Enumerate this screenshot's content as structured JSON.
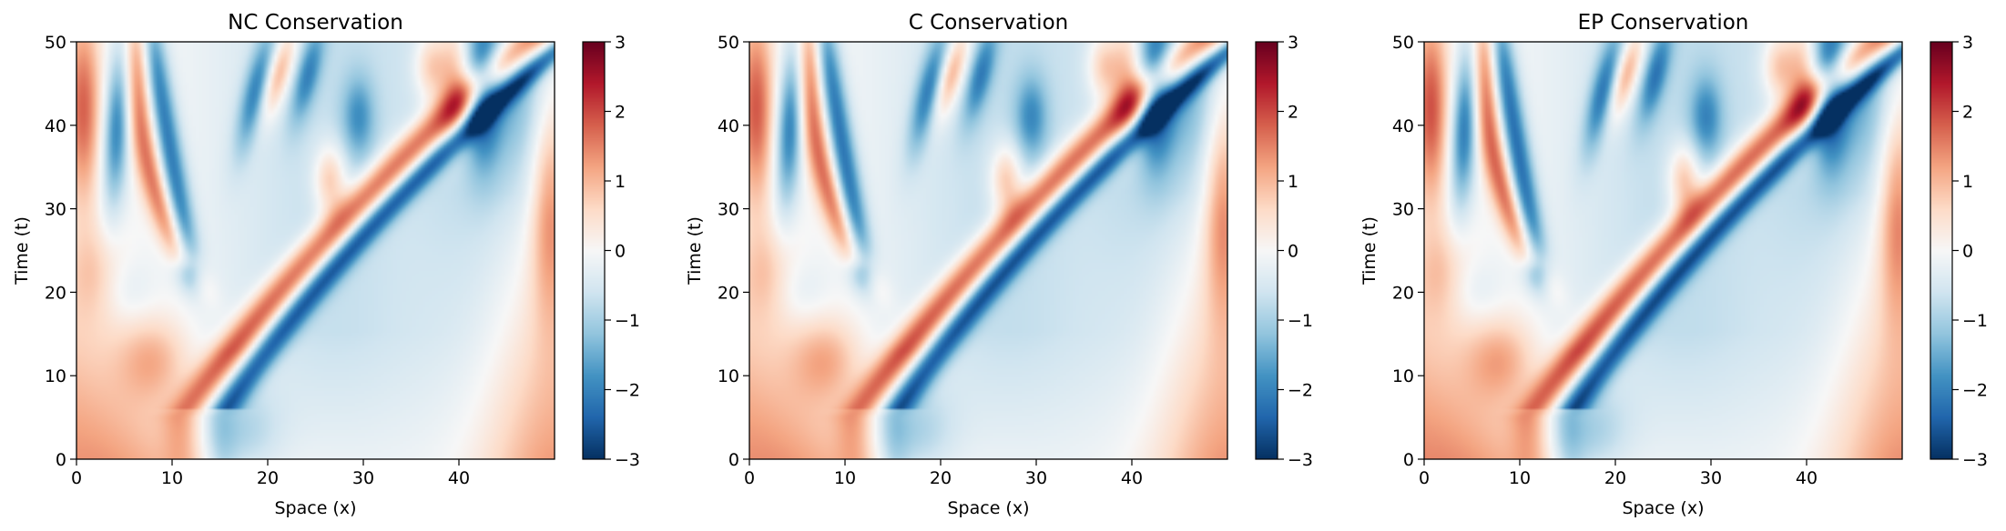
{
  "figure": {
    "colormap": "RdBu_r",
    "colormap_stops": [
      "#053061",
      "#2166ac",
      "#4393c3",
      "#92c5de",
      "#d1e5f0",
      "#f7f7f7",
      "#fddbc7",
      "#f4a582",
      "#d6604d",
      "#b2182b",
      "#67001f"
    ]
  },
  "chart_data": [
    {
      "type": "heatmap",
      "title": "NC Conservation",
      "xlabel": "Space (x)",
      "ylabel": "Time (t)",
      "xlim": [
        0,
        50
      ],
      "ylim": [
        0,
        50
      ],
      "xticks": [
        "0",
        "10",
        "20",
        "30",
        "40"
      ],
      "yticks": [
        "0",
        "10",
        "20",
        "30",
        "40",
        "50"
      ],
      "colorbar": {
        "range": [
          -3,
          3
        ],
        "ticks": [
          "−3",
          "−2",
          "−1",
          "0",
          "1",
          "2",
          "3"
        ]
      },
      "variant": 0
    },
    {
      "type": "heatmap",
      "title": "C Conservation",
      "xlabel": "Space (x)",
      "ylabel": "Time (t)",
      "xlim": [
        0,
        50
      ],
      "ylim": [
        0,
        50
      ],
      "xticks": [
        "0",
        "10",
        "20",
        "30",
        "40"
      ],
      "yticks": [
        "0",
        "10",
        "20",
        "30",
        "40",
        "50"
      ],
      "colorbar": {
        "range": [
          -3,
          3
        ],
        "ticks": [
          "−3",
          "−2",
          "−1",
          "0",
          "1",
          "2",
          "3"
        ]
      },
      "variant": 1
    },
    {
      "type": "heatmap",
      "title": "EP Conservation",
      "xlabel": "Space (x)",
      "ylabel": "Time (t)",
      "xlim": [
        0,
        50
      ],
      "ylim": [
        0,
        50
      ],
      "xticks": [
        "0",
        "10",
        "20",
        "30",
        "40"
      ],
      "yticks": [
        "0",
        "10",
        "20",
        "30",
        "40",
        "50"
      ],
      "colorbar": {
        "range": [
          -3,
          3
        ],
        "ticks": [
          "−3",
          "−2",
          "−1",
          "0",
          "1",
          "2",
          "3"
        ]
      },
      "variant": 2
    }
  ]
}
